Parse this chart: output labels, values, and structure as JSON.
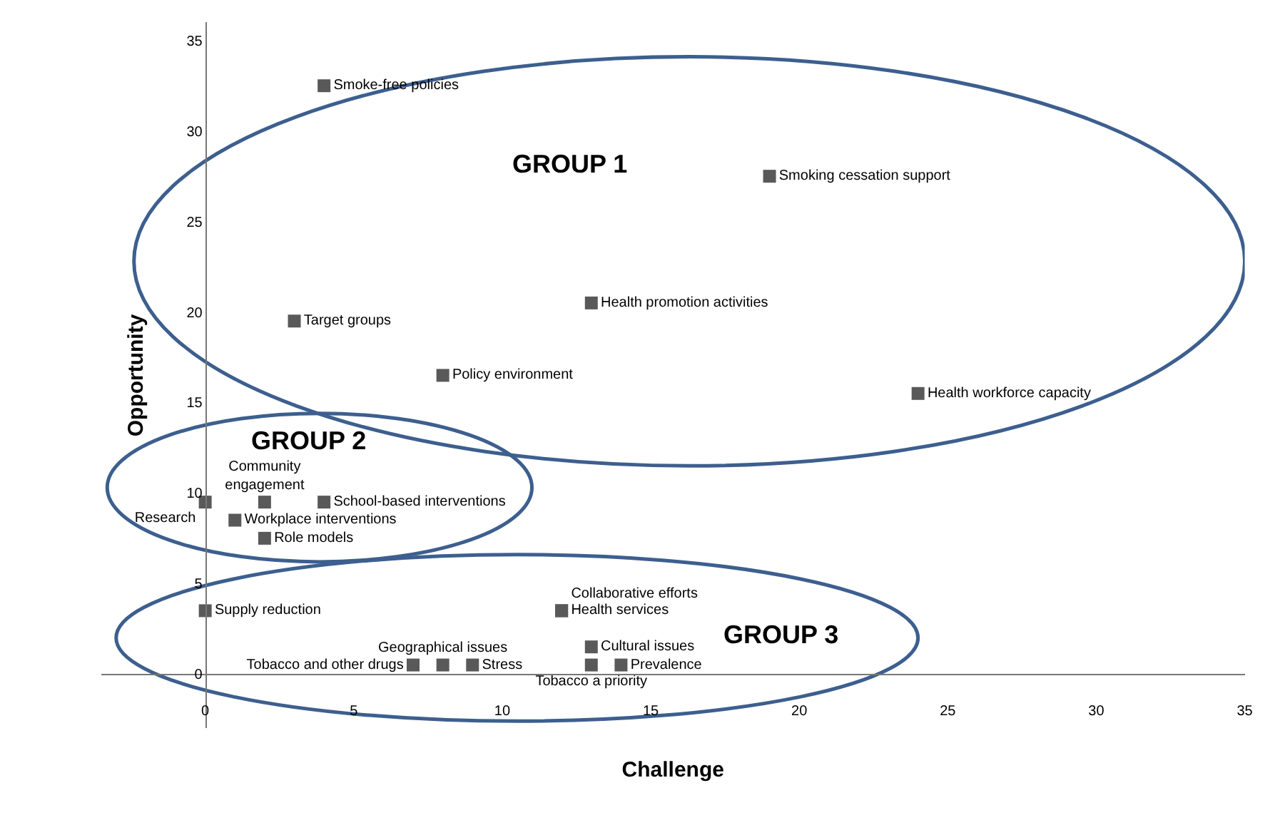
{
  "chart_data": {
    "type": "scatter",
    "xlabel": "Challenge",
    "ylabel": "Opportunity",
    "x": [
      4,
      19,
      3,
      13,
      8,
      24,
      0,
      2,
      4,
      1,
      2,
      0,
      12,
      12,
      7,
      8,
      9,
      13,
      13,
      14
    ],
    "values": [
      32.5,
      27.5,
      19.5,
      20.5,
      16.5,
      15.5,
      9.5,
      9.5,
      9.5,
      8.5,
      7.5,
      3.5,
      3.5,
      3.5,
      0.5,
      0.5,
      0.5,
      1.5,
      0.5,
      0.5
    ],
    "value_labels": [
      "Smoke-free policies",
      "Smoking cessation support",
      "Target groups",
      "Health promotion activities",
      "Policy environment",
      "Health workforce capacity",
      "Research",
      "Community engagement",
      "School-based interventions",
      "Workplace interventions",
      "Role models",
      "Supply reduction",
      "Collaborative efforts",
      "Health services",
      "Tobacco and other drugs",
      "Geographical issues",
      "Stress",
      "Cultural issues",
      "Tobacco a priority",
      "Prevalence"
    ],
    "color": "#595959",
    "marker": "square",
    "annotations": [
      "GROUP 1",
      "GROUP 2",
      "GROUP 3"
    ],
    "xlim": [
      -3.5,
      35
    ],
    "ylim": [
      -3,
      36
    ],
    "xticks": [
      0,
      5,
      10,
      15,
      20,
      25,
      30,
      35
    ],
    "yticks": [
      0,
      5,
      10,
      15,
      20,
      25,
      30,
      35
    ],
    "grid": false,
    "legend": false
  }
}
